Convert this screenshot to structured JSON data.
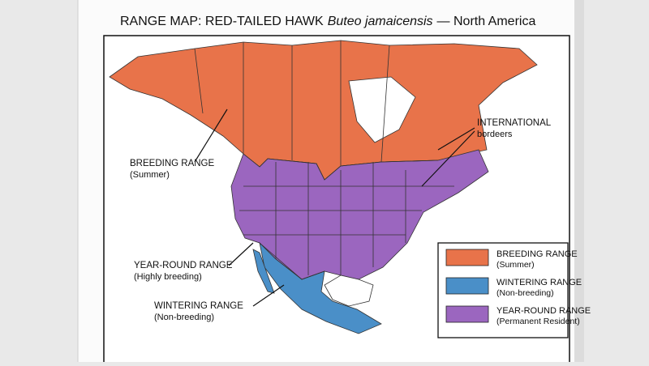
{
  "title": {
    "text": "RANGE MAP: RED-TAILED HAWK",
    "scientific_name": "Buteo jamaicensis",
    "suffix": "— North America"
  },
  "annotations": [
    {
      "title": "INTERNATIONAL",
      "subtitle": "bordeers"
    },
    {
      "title": "BREEDING RANGE",
      "subtitle": "(Summer)"
    },
    {
      "title": "YEAR-ROUND RANGE",
      "subtitle": "(Highly breeding)"
    },
    {
      "title": "WINTERING RANGE",
      "subtitle": "(Non-breeding)"
    }
  ],
  "legend": {
    "items": [
      {
        "label": "BREEDING RANGE",
        "note": "(Summer)",
        "color": "#e8734a"
      },
      {
        "label": "WINTERING RANGE",
        "note": "(Non-breeding)",
        "color": "#4a8fc8"
      },
      {
        "label": "YEAR-ROUND RANGE",
        "note": "(Permanent Resident)",
        "color": "#9b66bf"
      }
    ]
  }
}
